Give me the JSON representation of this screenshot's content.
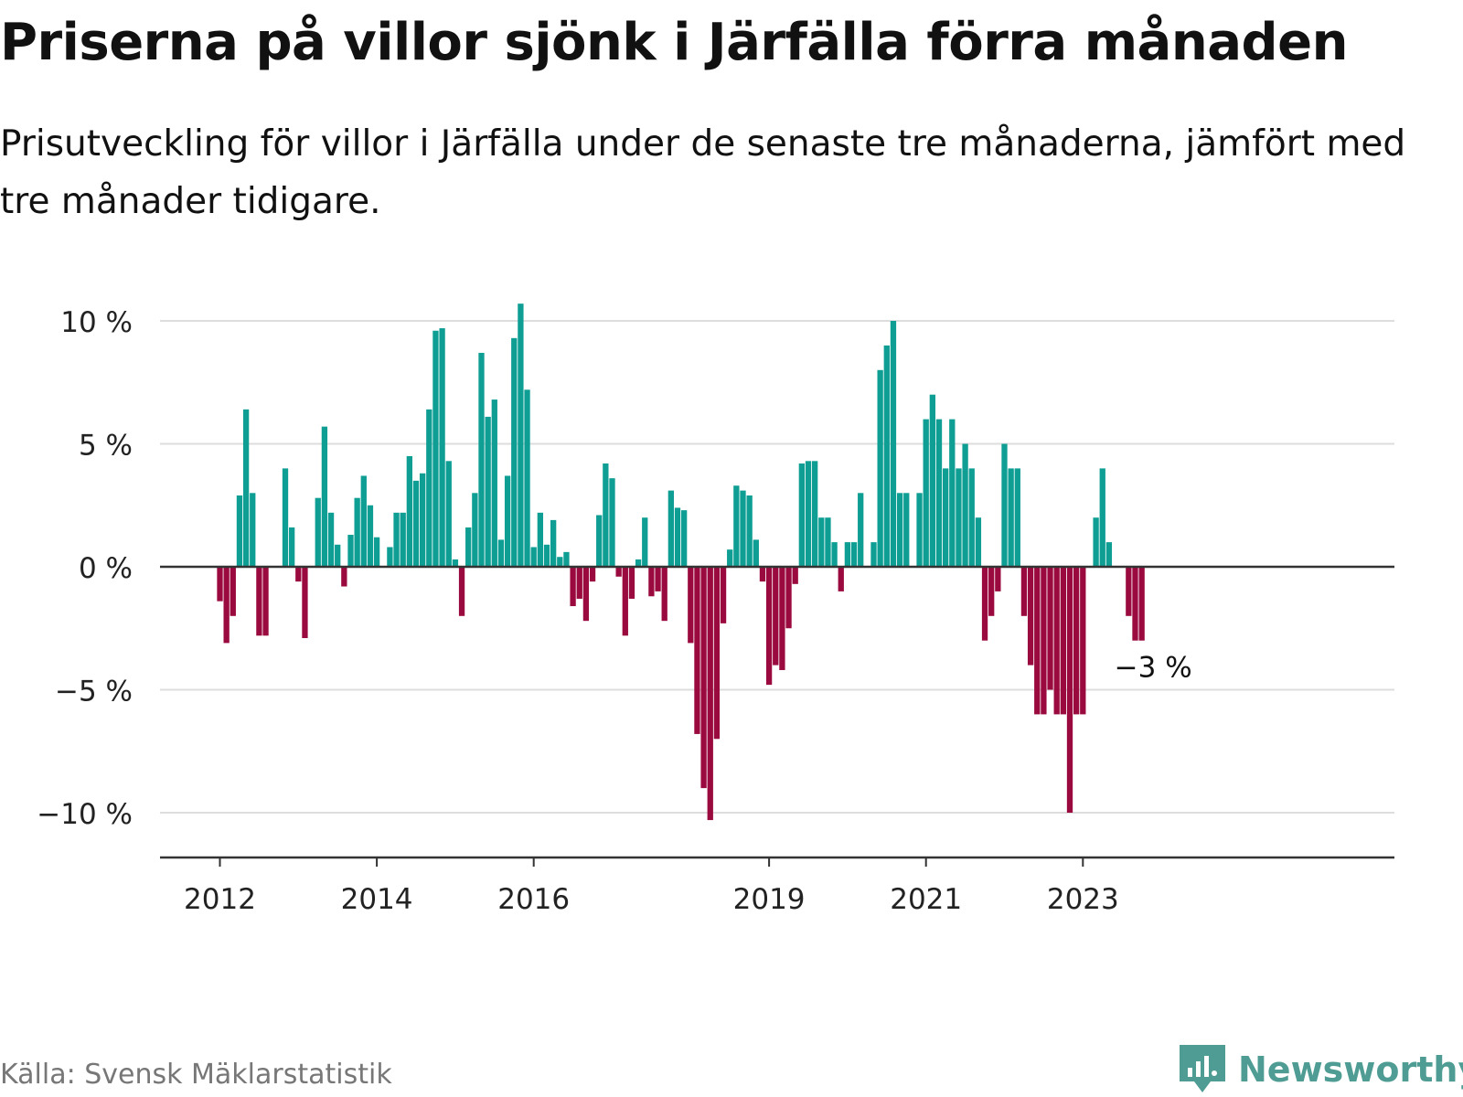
{
  "title": "Priserna på villor sjönk i Järfälla förra månaden",
  "subtitle": "Prisutveckling för villor i Järfälla under de senaste tre månaderna, jämfört med tre månader tidigare.",
  "source": "Källa: Svensk Mäklarstatistik",
  "brand": "Newsworthy",
  "colors": {
    "positive": "#0e9e93",
    "negative": "#9b0a3e",
    "grid": "#dddddd",
    "axis": "#333333",
    "text": "#222222",
    "brand": "#4e9c93"
  },
  "chart_data": {
    "type": "bar",
    "xlabel": "",
    "ylabel": "",
    "ylim": [
      -11.5,
      12
    ],
    "y_ticks": [
      {
        "value": 10,
        "label": "10 %"
      },
      {
        "value": 5,
        "label": "5 %"
      },
      {
        "value": 0,
        "label": "0 %"
      },
      {
        "value": -5,
        "label": "−5 %"
      },
      {
        "value": -10,
        "label": "−10 %"
      }
    ],
    "x_ticks": [
      "2012",
      "2014",
      "2016",
      "2019",
      "2021",
      "2023"
    ],
    "start": "2012-01",
    "end": "2023-12",
    "annotation": {
      "label": "−3 %"
    },
    "series": [
      {
        "name": "Prisutveckling",
        "values": [
          -1.4,
          -3.1,
          -2.0,
          2.9,
          6.4,
          3.0,
          -2.8,
          -2.8,
          null,
          null,
          4.0,
          1.6,
          -0.6,
          -2.9,
          null,
          2.8,
          5.7,
          2.2,
          0.9,
          -0.8,
          1.3,
          2.8,
          3.7,
          2.5,
          1.2,
          null,
          0.8,
          2.2,
          2.2,
          4.5,
          3.5,
          3.8,
          6.4,
          9.6,
          9.7,
          4.3,
          0.3,
          -2.0,
          1.6,
          3.0,
          8.7,
          6.1,
          6.8,
          1.1,
          3.7,
          9.3,
          10.7,
          7.2,
          0.8,
          2.2,
          0.9,
          1.9,
          0.4,
          0.6,
          -1.6,
          -1.3,
          -2.2,
          -0.6,
          2.1,
          4.2,
          3.6,
          -0.4,
          -2.8,
          -1.3,
          0.3,
          2.0,
          -1.2,
          -1.0,
          -2.2,
          3.1,
          2.4,
          2.3,
          -3.1,
          -6.8,
          -9.0,
          -10.3,
          -7.0,
          -2.3,
          0.7,
          3.3,
          3.1,
          2.9,
          1.1,
          -0.6,
          -4.8,
          -4.0,
          -4.2,
          -2.5,
          -0.7,
          4.2,
          4.3,
          4.3,
          2.0,
          2.0,
          1.0,
          -1.0,
          1.0,
          1.0,
          3.0,
          null,
          1.0,
          8.0,
          9.0,
          10.0,
          3.0,
          3.0,
          null,
          3.0,
          6.0,
          7.0,
          6.0,
          4.0,
          6.0,
          4.0,
          5.0,
          4.0,
          2.0,
          -3.0,
          -2.0,
          -1.0,
          5.0,
          4.0,
          4.0,
          -2.0,
          -4.0,
          -6.0,
          -6.0,
          -5.0,
          -6.0,
          -6.0,
          -10.0,
          -6.0,
          -6.0,
          null,
          2.0,
          4.0,
          1.0,
          null,
          null,
          -2.0,
          -3.0,
          -3.0,
          null,
          null
        ]
      }
    ]
  }
}
